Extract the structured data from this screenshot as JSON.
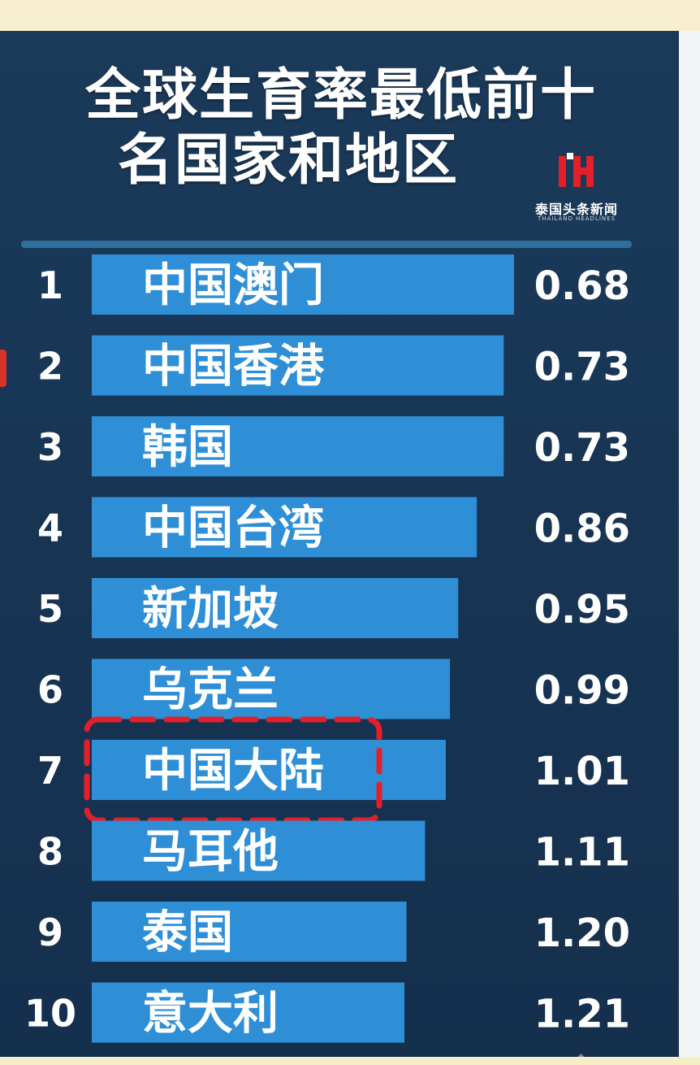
{
  "header": {
    "title_line1": "全球生育率最低前十",
    "title_line2": "名国家和地区",
    "logo_cn": "泰国头条新闻",
    "logo_en": "THAILAND HEADLINES"
  },
  "colors": {
    "background": "#173453",
    "bar": "#2e8fd6",
    "highlight": "#e3202a",
    "text": "#ffffff"
  },
  "chart_data": {
    "type": "bar",
    "orientation": "horizontal",
    "title": "全球生育率最低前十名国家和地区",
    "ranks": [
      "1",
      "2",
      "3",
      "4",
      "5",
      "6",
      "7",
      "8",
      "9",
      "10"
    ],
    "categories": [
      "中国澳门",
      "中国香港",
      "韩国",
      "中国台湾",
      "新加坡",
      "乌克兰",
      "中国大陆",
      "马耳他",
      "泰国",
      "意大利"
    ],
    "values": [
      0.68,
      0.73,
      0.73,
      0.86,
      0.95,
      0.99,
      1.01,
      1.11,
      1.2,
      1.21
    ],
    "value_labels": [
      "0.68",
      "0.73",
      "0.73",
      "0.86",
      "0.95",
      "0.99",
      "1.01",
      "1.11",
      "1.20",
      "1.21"
    ],
    "highlighted": "中国大陆",
    "grid": false,
    "legend": "none"
  }
}
